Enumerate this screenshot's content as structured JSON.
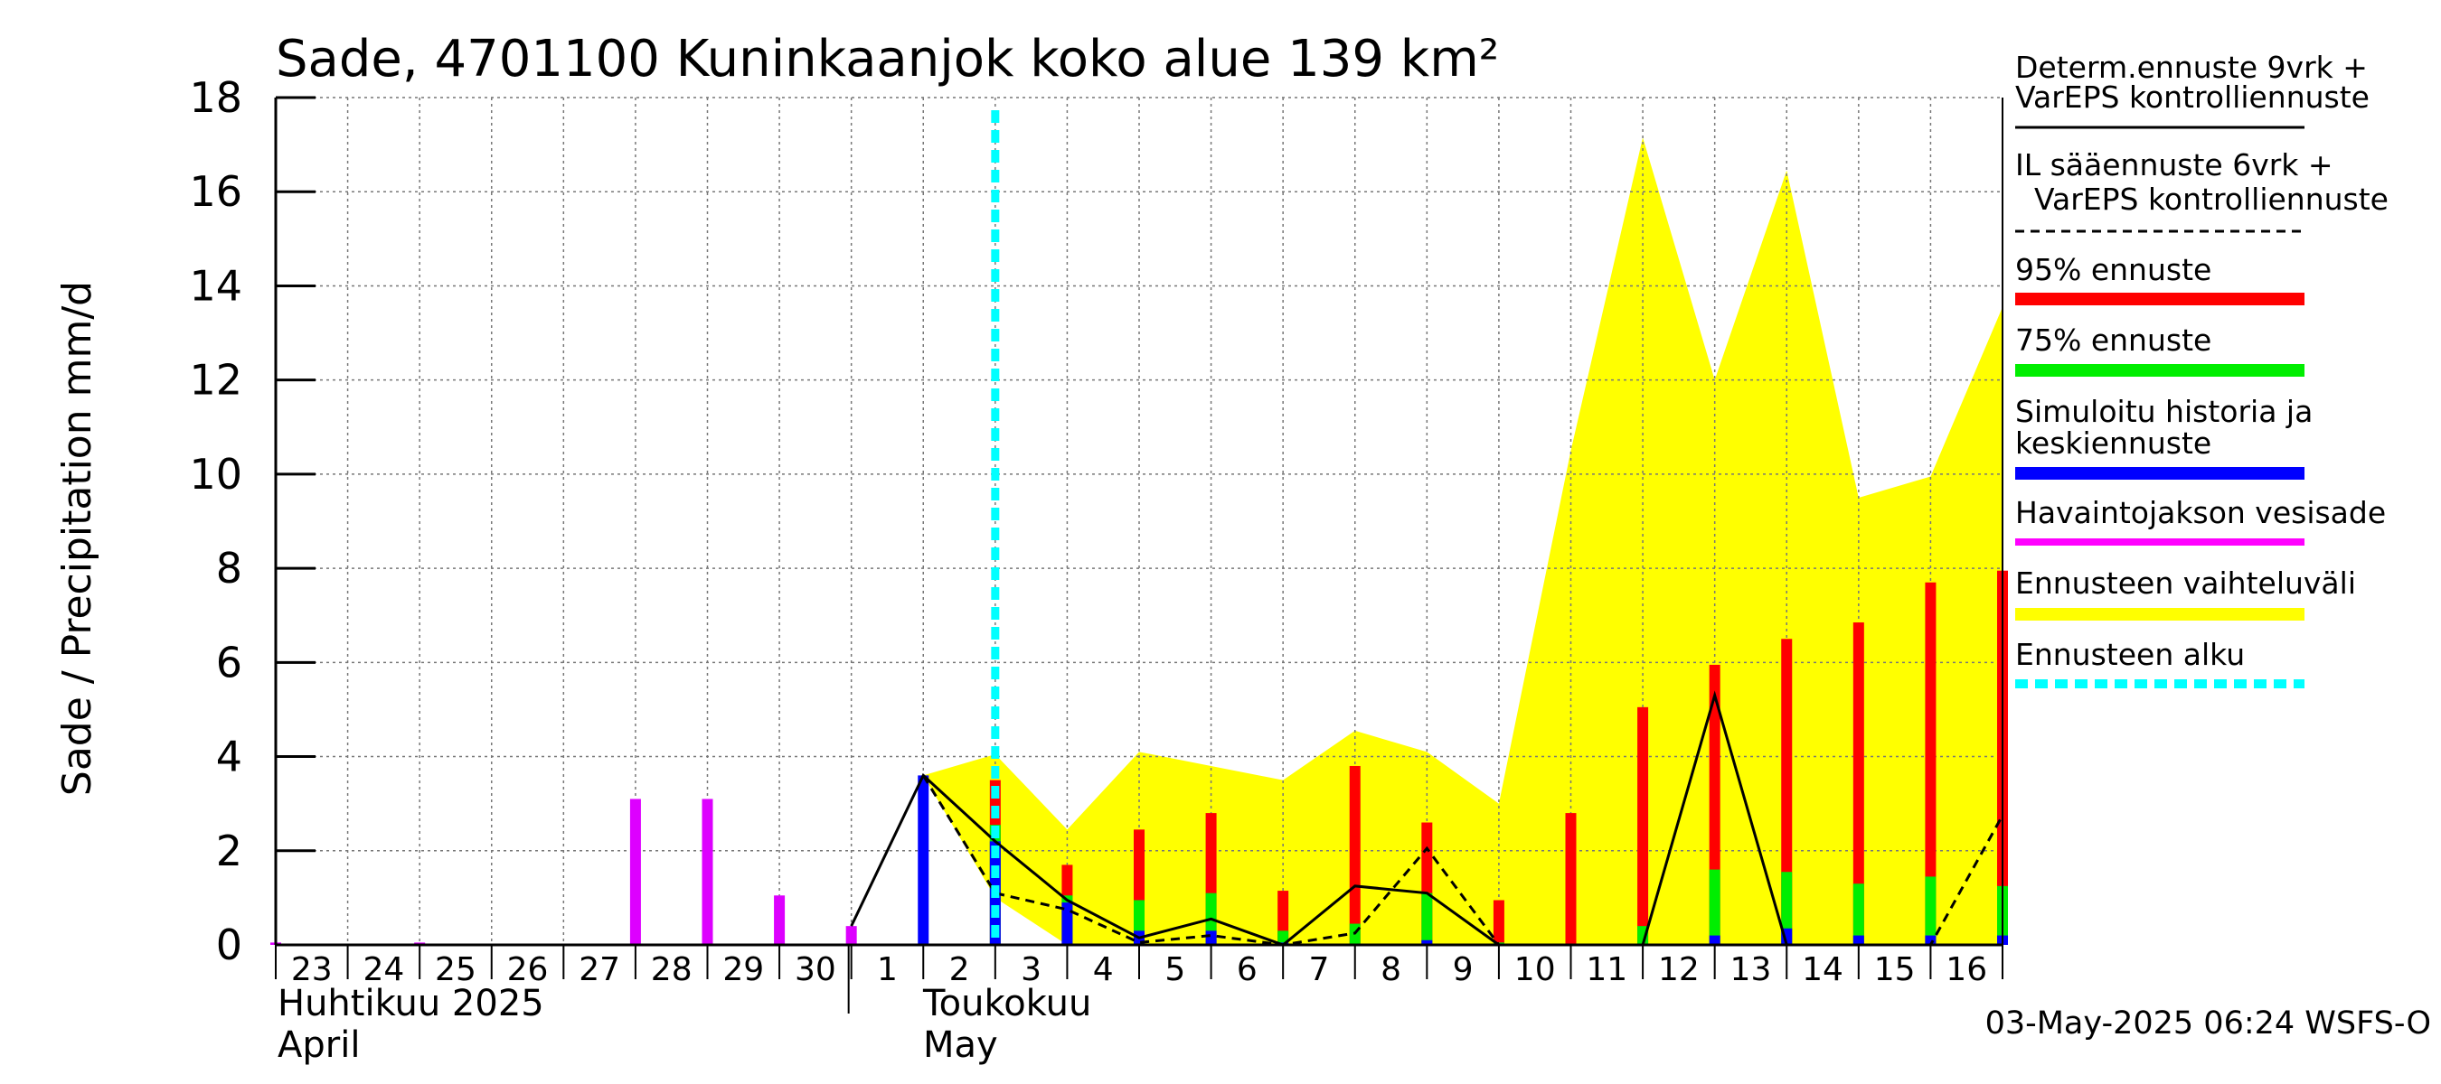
{
  "chart_data": {
    "type": "bar",
    "title": "Sade, 4701100 Kuninkaanjok koko alue 139 km²",
    "ylabel": "Sade / Precipitation   mm/d",
    "ylim": [
      0,
      18
    ],
    "yticks": [
      "0",
      "2",
      "4",
      "6",
      "8",
      "10",
      "12",
      "14",
      "16",
      "18"
    ],
    "grid": true,
    "x_day_labels": [
      "23",
      "24",
      "25",
      "26",
      "27",
      "28",
      "29",
      "30",
      "1",
      "2",
      "3",
      "4",
      "5",
      "6",
      "7",
      "8",
      "9",
      "10",
      "11",
      "12",
      "13",
      "14",
      "15",
      "16"
    ],
    "month_labels": {
      "april_fi": "Huhtikuu  2025",
      "april_en": "April",
      "may_fi": "Toukokuu",
      "may_en": "May"
    },
    "forecast_start_day": 10,
    "observed_precipitation": [
      {
        "day": 0,
        "value": 0.05
      },
      {
        "day": 2,
        "value": 0.05
      },
      {
        "day": 5,
        "value": 3.1
      },
      {
        "day": 6,
        "value": 3.1
      },
      {
        "day": 7,
        "value": 1.05
      },
      {
        "day": 8,
        "value": 0.4
      }
    ],
    "simulated_mean": [
      {
        "day": 9,
        "value": 3.6
      },
      {
        "day": 10,
        "value": 2.2
      },
      {
        "day": 11,
        "value": 0.9
      },
      {
        "day": 12,
        "value": 0.3
      },
      {
        "day": 13,
        "value": 0.3
      },
      {
        "day": 14,
        "value": 0.05
      },
      {
        "day": 16,
        "value": 0.1
      },
      {
        "day": 20,
        "value": 0.2
      },
      {
        "day": 21,
        "value": 0.35
      },
      {
        "day": 22,
        "value": 0.2
      },
      {
        "day": 23,
        "value": 0.2
      },
      {
        "day": 24,
        "value": 0.2
      }
    ],
    "p75": [
      {
        "day": 10,
        "value": 2.55
      },
      {
        "day": 11,
        "value": 1.05
      },
      {
        "day": 12,
        "value": 0.95
      },
      {
        "day": 13,
        "value": 1.1
      },
      {
        "day": 14,
        "value": 0.3
      },
      {
        "day": 15,
        "value": 0.45
      },
      {
        "day": 16,
        "value": 1.1
      },
      {
        "day": 17,
        "value": 0.05
      },
      {
        "day": 19,
        "value": 0.4
      },
      {
        "day": 20,
        "value": 1.6
      },
      {
        "day": 21,
        "value": 1.55
      },
      {
        "day": 22,
        "value": 1.3
      },
      {
        "day": 23,
        "value": 1.45
      },
      {
        "day": 24,
        "value": 1.25
      }
    ],
    "p95": [
      {
        "day": 10,
        "value": 3.5
      },
      {
        "day": 11,
        "value": 1.7
      },
      {
        "day": 12,
        "value": 2.45
      },
      {
        "day": 13,
        "value": 2.8
      },
      {
        "day": 14,
        "value": 1.15
      },
      {
        "day": 15,
        "value": 3.8
      },
      {
        "day": 16,
        "value": 2.6
      },
      {
        "day": 17,
        "value": 0.95
      },
      {
        "day": 18,
        "value": 2.8
      },
      {
        "day": 19,
        "value": 5.05
      },
      {
        "day": 20,
        "value": 5.95
      },
      {
        "day": 21,
        "value": 6.5
      },
      {
        "day": 22,
        "value": 6.85
      },
      {
        "day": 23,
        "value": 7.7
      },
      {
        "day": 24,
        "value": 7.95
      }
    ],
    "range_upper": [
      {
        "day": 9,
        "value": 3.6
      },
      {
        "day": 10,
        "value": 4.05
      },
      {
        "day": 11,
        "value": 2.45
      },
      {
        "day": 12,
        "value": 4.1
      },
      {
        "day": 13,
        "value": 3.8
      },
      {
        "day": 14,
        "value": 3.5
      },
      {
        "day": 15,
        "value": 4.55
      },
      {
        "day": 16,
        "value": 4.1
      },
      {
        "day": 17,
        "value": 3.0
      },
      {
        "day": 18,
        "value": 10.5
      },
      {
        "day": 19,
        "value": 17.15
      },
      {
        "day": 20,
        "value": 12.0
      },
      {
        "day": 21,
        "value": 16.45
      },
      {
        "day": 22,
        "value": 9.5
      },
      {
        "day": 23,
        "value": 9.95
      },
      {
        "day": 24,
        "value": 13.55
      }
    ],
    "range_lower": [
      {
        "day": 9,
        "value": 3.6
      },
      {
        "day": 10,
        "value": 1.0
      },
      {
        "day": 11,
        "value": 0.0
      },
      {
        "day": 24,
        "value": 0.0
      }
    ],
    "determ_forecast": [
      {
        "day": 8,
        "value": 0.4
      },
      {
        "day": 9,
        "value": 3.6
      },
      {
        "day": 10,
        "value": 2.2
      },
      {
        "day": 11,
        "value": 0.95
      },
      {
        "day": 12,
        "value": 0.15
      },
      {
        "day": 13,
        "value": 0.55
      },
      {
        "day": 14,
        "value": 0.0
      },
      {
        "day": 15,
        "value": 1.25
      },
      {
        "day": 16,
        "value": 1.1
      },
      {
        "day": 17,
        "value": 0.0
      },
      {
        "day": 18,
        "value": 0.0
      },
      {
        "day": 19,
        "value": 0.0
      },
      {
        "day": 20,
        "value": 5.3
      },
      {
        "day": 21,
        "value": 0.0
      },
      {
        "day": 22,
        "value": 0.0
      },
      {
        "day": 23,
        "value": 0.0
      },
      {
        "day": 24,
        "value": 0.0
      }
    ],
    "il_forecast": [
      {
        "day": 9,
        "value": 3.6
      },
      {
        "day": 10,
        "value": 1.1
      },
      {
        "day": 11,
        "value": 0.75
      },
      {
        "day": 12,
        "value": 0.05
      },
      {
        "day": 13,
        "value": 0.2
      },
      {
        "day": 14,
        "value": 0.0
      },
      {
        "day": 15,
        "value": 0.25
      },
      {
        "day": 16,
        "value": 2.05
      },
      {
        "day": 17,
        "value": 0.0
      },
      {
        "day": 23,
        "value": 0.0
      },
      {
        "day": 24,
        "value": 2.75
      }
    ],
    "legend": {
      "determ": [
        "Determ.ennuste 9vrk +",
        "VarEPS kontrolliennuste"
      ],
      "il": [
        "IL sääennuste 6vrk  +",
        "  VarEPS kontrolliennuste"
      ],
      "p95": "95% ennuste",
      "p75": "75% ennuste",
      "sim": [
        "Simuloitu historia ja",
        "keskiennuste"
      ],
      "obs": "Havaintojakson vesisade",
      "range": "Ennusteen vaihteluväli",
      "start": "Ennusteen alku"
    },
    "footer": "03-May-2025 06:24 WSFS-O",
    "colors": {
      "range": "#ffff00",
      "p95": "#ff0000",
      "p75": "#00ee00",
      "sim": "#0000ff",
      "obs": "#dd00ff",
      "observed_legend": "#ff00ff",
      "start": "#00ffff",
      "line": "#000000",
      "grid": "#777777"
    }
  }
}
